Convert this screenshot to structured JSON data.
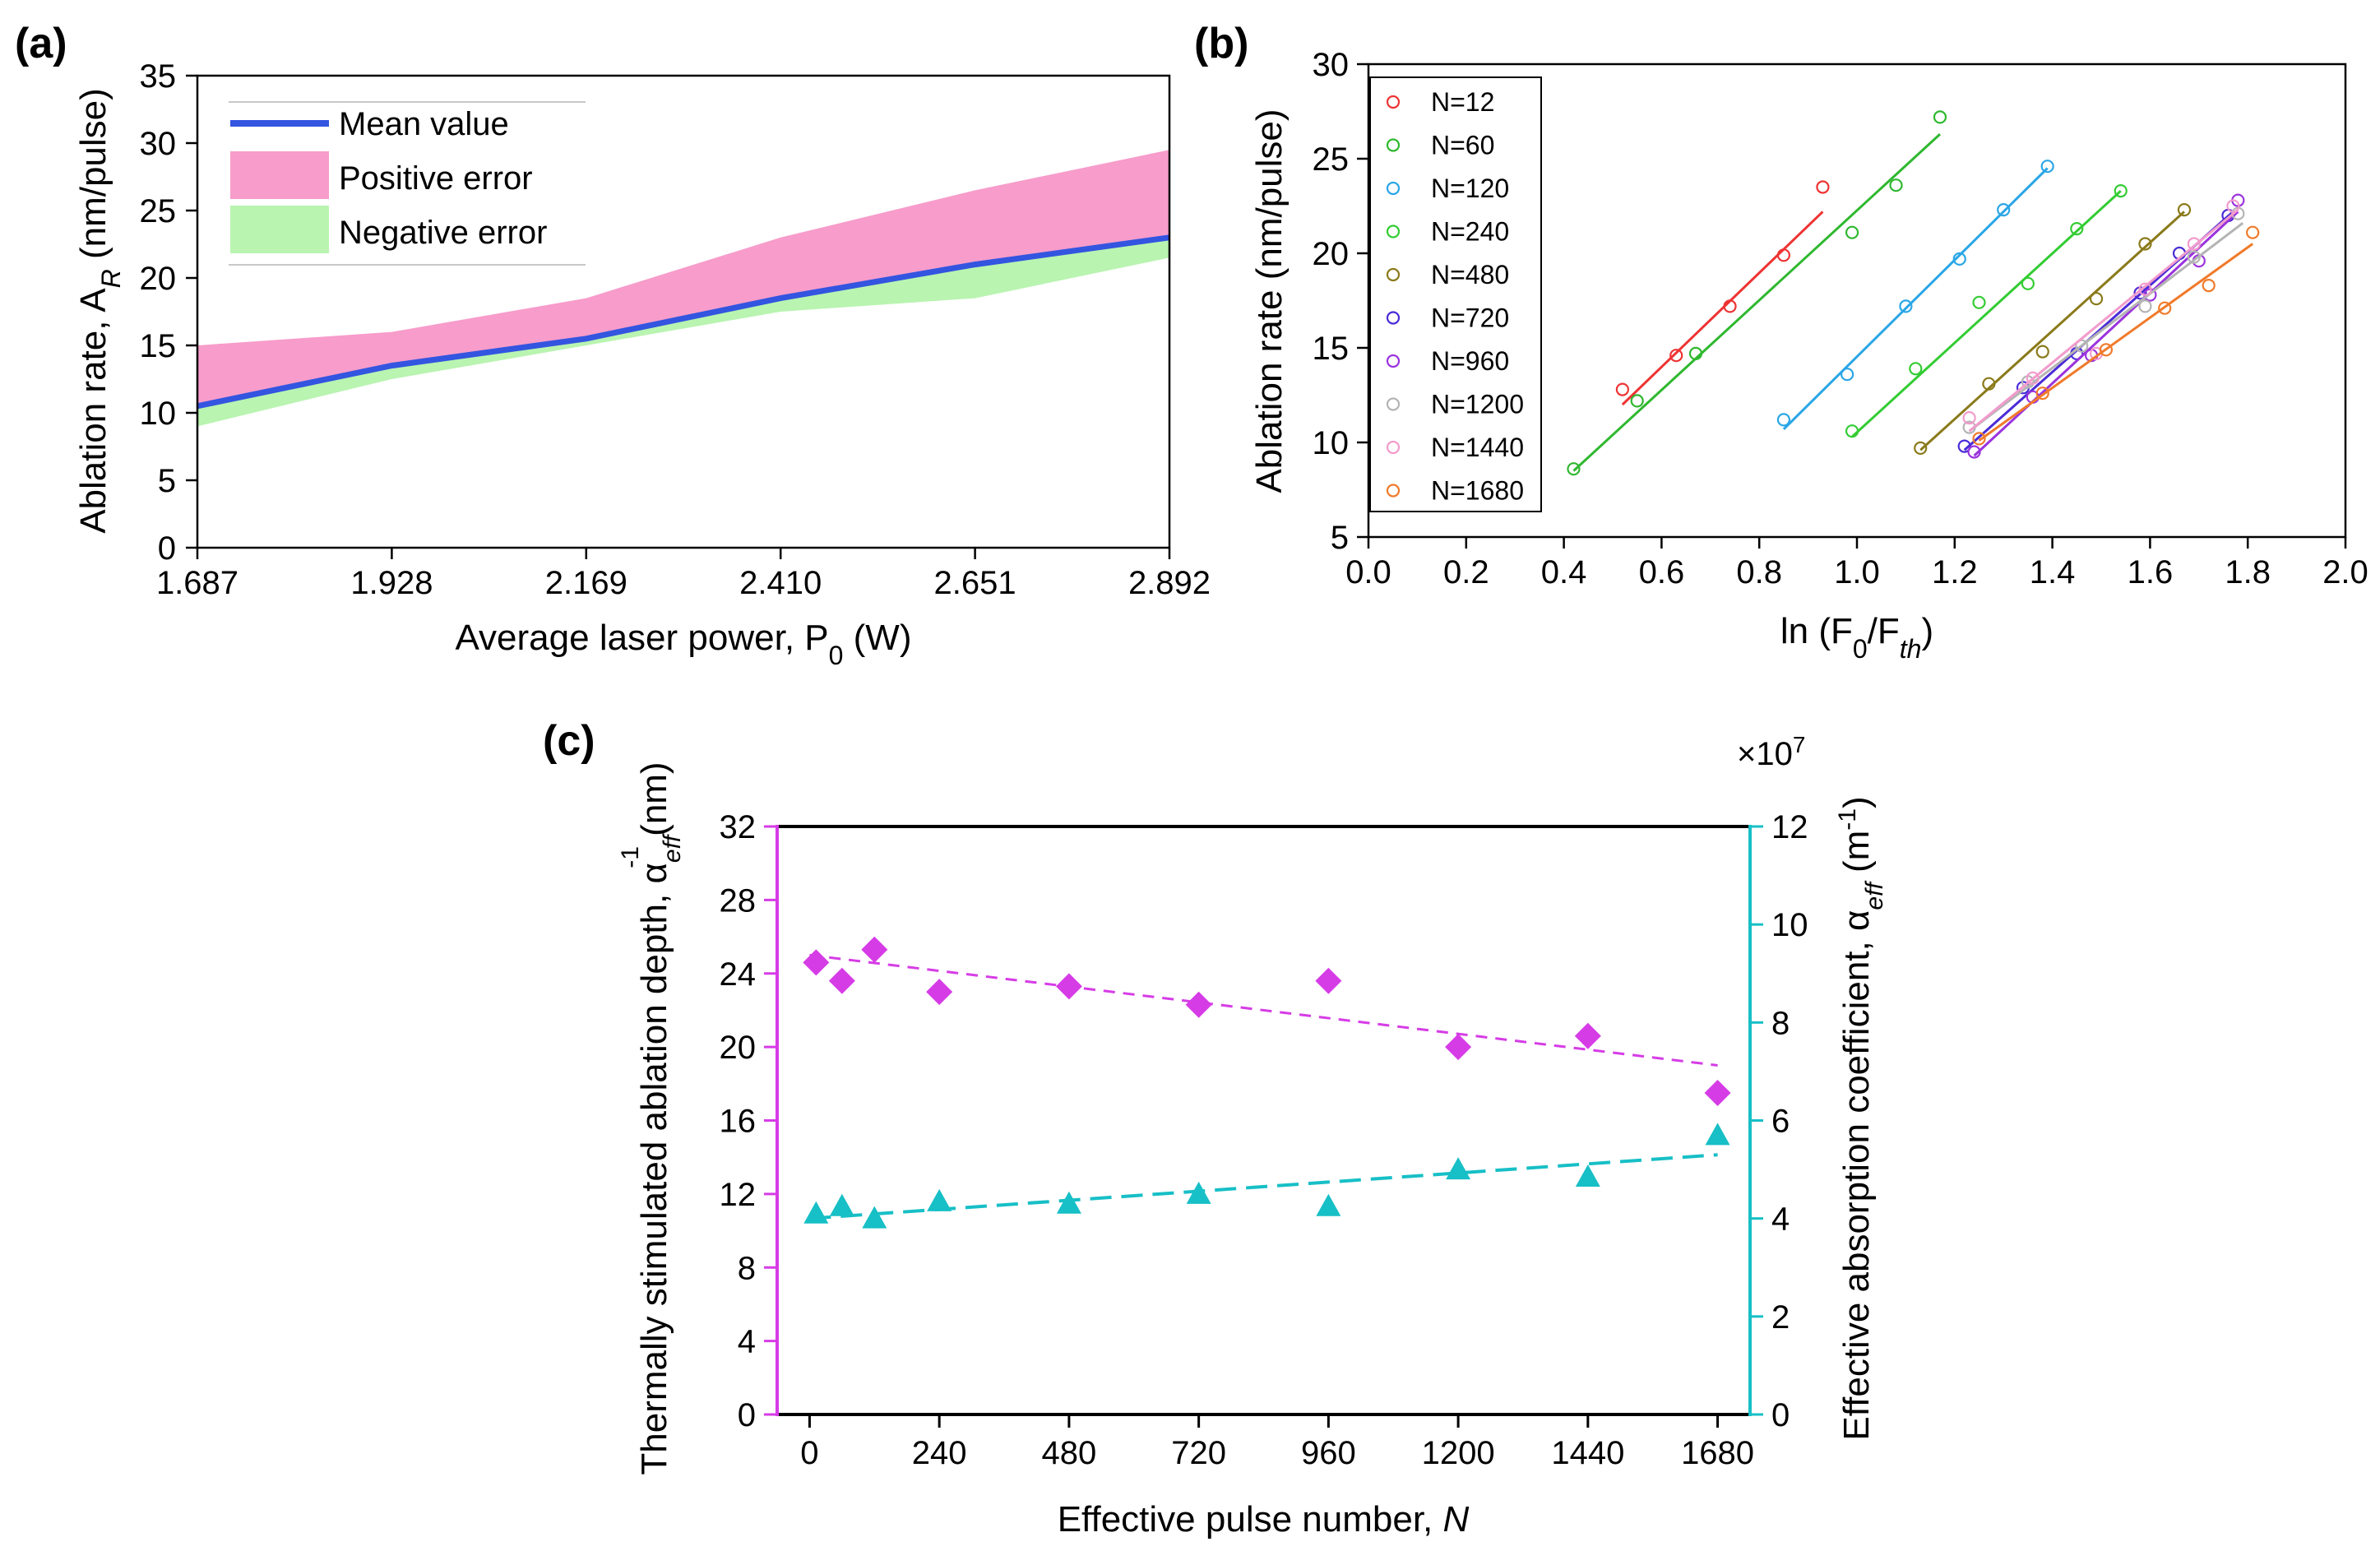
{
  "colors": {
    "mean": "#3355e0",
    "positive_error": "#f79ccb",
    "negative_error": "#b9f4b1",
    "magenta": "#d63ce6",
    "cyan": "#17bfc6",
    "series_b": [
      "#ee3333",
      "#2fb82f",
      "#2aa6e6",
      "#33cc33",
      "#8a7a1a",
      "#4a2bd6",
      "#9a33dd",
      "#b4b4b4",
      "#f29bcc",
      "#f07a2a"
    ]
  },
  "chart_data": [
    {
      "panel": "(a)",
      "type": "area",
      "xlabel": "Average laser power, P",
      "xlabel_sub": "0",
      "xlabel_unit": " (W)",
      "ylabel": "Ablation rate, A",
      "ylabel_sub": "R",
      "ylabel_unit": " (nm/pulse)",
      "x_ticks": [
        "1.687",
        "1.928",
        "2.169",
        "2.410",
        "2.651",
        "2.892"
      ],
      "y_ticks": [
        "0",
        "5",
        "10",
        "15",
        "20",
        "25",
        "30",
        "35"
      ],
      "xlim": [
        1.687,
        2.892
      ],
      "ylim": [
        0,
        35
      ],
      "legend_position": "top-left",
      "legend": [
        "Mean value",
        "Positive error",
        "Negative error"
      ],
      "x": [
        1.687,
        1.928,
        2.169,
        2.41,
        2.651,
        2.892
      ],
      "mean": [
        10.5,
        13.5,
        15.5,
        18.5,
        21.0,
        23.0
      ],
      "upper": [
        15.0,
        16.0,
        18.5,
        23.0,
        26.5,
        29.5
      ],
      "lower": [
        9.0,
        12.5,
        15.0,
        17.5,
        18.5,
        21.5
      ]
    },
    {
      "panel": "(b)",
      "type": "scatter",
      "xlabel": "ln (F",
      "xlabel_sub": "0",
      "xlabel_mid": "/F",
      "xlabel_sub2": "th",
      "xlabel_end": ")",
      "ylabel": "Ablation rate (nm/pulse)",
      "x_ticks": [
        "0.0",
        "0.2",
        "0.4",
        "0.6",
        "0.8",
        "1.0",
        "1.2",
        "1.4",
        "1.6",
        "1.8",
        "2.0"
      ],
      "y_ticks": [
        "5",
        "10",
        "15",
        "20",
        "25",
        "30"
      ],
      "xlim": [
        0,
        2.0
      ],
      "ylim": [
        5,
        30
      ],
      "legend_position": "top-left",
      "series": [
        {
          "name": "N=12",
          "x": [
            0.52,
            0.63,
            0.74,
            0.85,
            0.93
          ],
          "y": [
            12.8,
            14.6,
            17.2,
            19.9,
            23.5
          ],
          "fit": [
            0.52,
            12.0,
            0.93,
            22.2
          ]
        },
        {
          "name": "N=60",
          "x": [
            0.42,
            0.55,
            0.67,
            0.99,
            1.08,
            1.17
          ],
          "y": [
            8.6,
            12.2,
            14.7,
            21.1,
            23.6,
            27.2
          ],
          "fit": [
            0.42,
            8.5,
            1.17,
            26.3
          ]
        },
        {
          "name": "N=120",
          "x": [
            0.85,
            0.98,
            1.1,
            1.21,
            1.3,
            1.39
          ],
          "y": [
            11.2,
            13.6,
            17.2,
            19.7,
            22.3,
            24.6
          ],
          "fit": [
            0.85,
            10.7,
            1.39,
            24.5
          ]
        },
        {
          "name": "N=240",
          "x": [
            0.99,
            1.12,
            1.25,
            1.35,
            1.45,
            1.54
          ],
          "y": [
            10.6,
            13.9,
            17.4,
            18.4,
            21.3,
            23.3
          ],
          "fit": [
            0.99,
            10.3,
            1.54,
            23.3
          ]
        },
        {
          "name": "N=480",
          "x": [
            1.13,
            1.27,
            1.38,
            1.49,
            1.59,
            1.67
          ],
          "y": [
            9.7,
            13.1,
            14.8,
            17.6,
            20.5,
            22.3
          ],
          "fit": [
            1.13,
            9.6,
            1.67,
            22.2
          ]
        },
        {
          "name": "N=720",
          "x": [
            1.22,
            1.34,
            1.45,
            1.58,
            1.66,
            1.76
          ],
          "y": [
            9.8,
            12.9,
            14.7,
            17.9,
            20.0,
            22.0
          ],
          "fit": [
            1.22,
            9.6,
            1.77,
            22.2
          ]
        },
        {
          "name": "N=960",
          "x": [
            1.24,
            1.36,
            1.48,
            1.6,
            1.7,
            1.78
          ],
          "y": [
            9.5,
            12.4,
            14.6,
            17.8,
            19.6,
            22.8
          ],
          "fit": [
            1.24,
            9.3,
            1.78,
            22.2
          ]
        },
        {
          "name": "N=1200",
          "x": [
            1.23,
            1.35,
            1.46,
            1.59,
            1.69,
            1.78
          ],
          "y": [
            10.8,
            13.2,
            15.1,
            17.2,
            19.8,
            22.1
          ],
          "fit": [
            1.23,
            10.6,
            1.79,
            21.6
          ]
        },
        {
          "name": "N=1440",
          "x": [
            1.23,
            1.36,
            1.49,
            1.59,
            1.69,
            1.77
          ],
          "y": [
            11.3,
            13.4,
            14.7,
            18.1,
            20.5,
            22.5
          ],
          "fit": [
            1.23,
            10.6,
            1.78,
            22.3
          ]
        },
        {
          "name": "N=1680",
          "x": [
            1.25,
            1.38,
            1.51,
            1.63,
            1.72,
            1.81
          ],
          "y": [
            10.2,
            12.6,
            14.9,
            17.1,
            18.3,
            21.1
          ],
          "fit": [
            1.25,
            10.1,
            1.81,
            20.5
          ]
        }
      ]
    },
    {
      "panel": "(c)",
      "type": "scatter",
      "xlabel": "Effective pulse number, ",
      "xlabel_var": "N",
      "ylabel_left": "Thermally stimulated ablation depth, α",
      "ylabel_left_sub": "eff",
      "ylabel_left_sup": "-1",
      "ylabel_left_unit": " (nm)",
      "ylabel_right": "Effective absorption coefficient, α",
      "ylabel_right_sub": "eff",
      "ylabel_right_unit": " (m",
      "ylabel_right_sup": "-1",
      "ylabel_right_end": ")",
      "right_multiplier": "×10",
      "right_multiplier_exp": "7",
      "x_ticks": [
        "0",
        "240",
        "480",
        "720",
        "960",
        "1200",
        "1440",
        "1680"
      ],
      "y_left_ticks": [
        "0",
        "4",
        "8",
        "12",
        "16",
        "20",
        "24",
        "28",
        "32"
      ],
      "y_right_ticks": [
        "0",
        "2",
        "4",
        "6",
        "8",
        "10",
        "12"
      ],
      "xlim": [
        -60,
        1740
      ],
      "ylim_left": [
        0,
        32
      ],
      "ylim_right": [
        0,
        12
      ],
      "x": [
        12,
        60,
        120,
        240,
        480,
        720,
        960,
        1200,
        1440,
        1680
      ],
      "depth_nm": [
        24.6,
        23.6,
        25.3,
        23.0,
        23.3,
        22.3,
        23.6,
        20.0,
        20.6,
        17.5
      ],
      "depth_fit": [
        0,
        25.0,
        1680,
        19.0
      ],
      "alpha_1e7": [
        4.1,
        4.25,
        4.0,
        4.35,
        4.3,
        4.5,
        4.25,
        5.0,
        4.85,
        5.7
      ],
      "alpha_fit": [
        0,
        4.0,
        1680,
        5.3
      ]
    }
  ]
}
